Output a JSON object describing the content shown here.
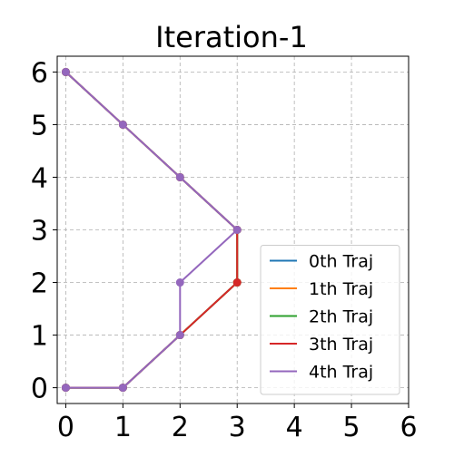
{
  "chart_data": {
    "type": "line",
    "title": "Iteration-1",
    "xlabel": "",
    "ylabel": "",
    "xlim": [
      -0.15,
      6
    ],
    "ylim": [
      -0.3,
      6.3
    ],
    "x_ticks": [
      0,
      1,
      2,
      3,
      4,
      5,
      6
    ],
    "y_ticks": [
      0,
      1,
      2,
      3,
      4,
      5,
      6
    ],
    "x_tick_labels": [
      "0",
      "1",
      "2",
      "3",
      "4",
      "5",
      "6"
    ],
    "y_tick_labels": [
      "0",
      "1",
      "2",
      "3",
      "4",
      "5",
      "6"
    ],
    "grid": true,
    "legend_position": "lower-right",
    "series": [
      {
        "name": "0th Traj",
        "color": "#1f77b4",
        "points": [
          [
            0,
            0
          ],
          [
            1,
            0
          ],
          [
            2,
            1
          ],
          [
            3,
            2
          ],
          [
            3,
            3
          ],
          [
            2,
            4
          ],
          [
            1,
            5
          ],
          [
            0,
            6
          ]
        ]
      },
      {
        "name": "1th Traj",
        "color": "#ff7f0e",
        "points": [
          [
            0,
            0
          ],
          [
            1,
            0
          ],
          [
            2,
            1
          ],
          [
            3,
            2
          ],
          [
            3,
            3
          ],
          [
            2,
            4
          ],
          [
            1,
            5
          ],
          [
            0,
            6
          ]
        ]
      },
      {
        "name": "2th Traj",
        "color": "#2ca02c",
        "points": [
          [
            0,
            0
          ],
          [
            1,
            0
          ],
          [
            2,
            1
          ],
          [
            3,
            2
          ],
          [
            3,
            3
          ],
          [
            2,
            4
          ],
          [
            1,
            5
          ],
          [
            0,
            6
          ]
        ]
      },
      {
        "name": "3th Traj",
        "color": "#d62728",
        "points": [
          [
            0,
            0
          ],
          [
            1,
            0
          ],
          [
            2,
            1
          ],
          [
            3,
            2
          ],
          [
            3,
            3
          ],
          [
            2,
            4
          ],
          [
            1,
            5
          ],
          [
            0,
            6
          ]
        ]
      },
      {
        "name": "4th Traj",
        "color": "#9467bd",
        "points": [
          [
            0,
            0
          ],
          [
            1,
            0
          ],
          [
            2,
            1
          ],
          [
            2,
            2
          ],
          [
            3,
            3
          ],
          [
            2,
            4
          ],
          [
            1,
            5
          ],
          [
            0,
            6
          ]
        ]
      }
    ]
  }
}
